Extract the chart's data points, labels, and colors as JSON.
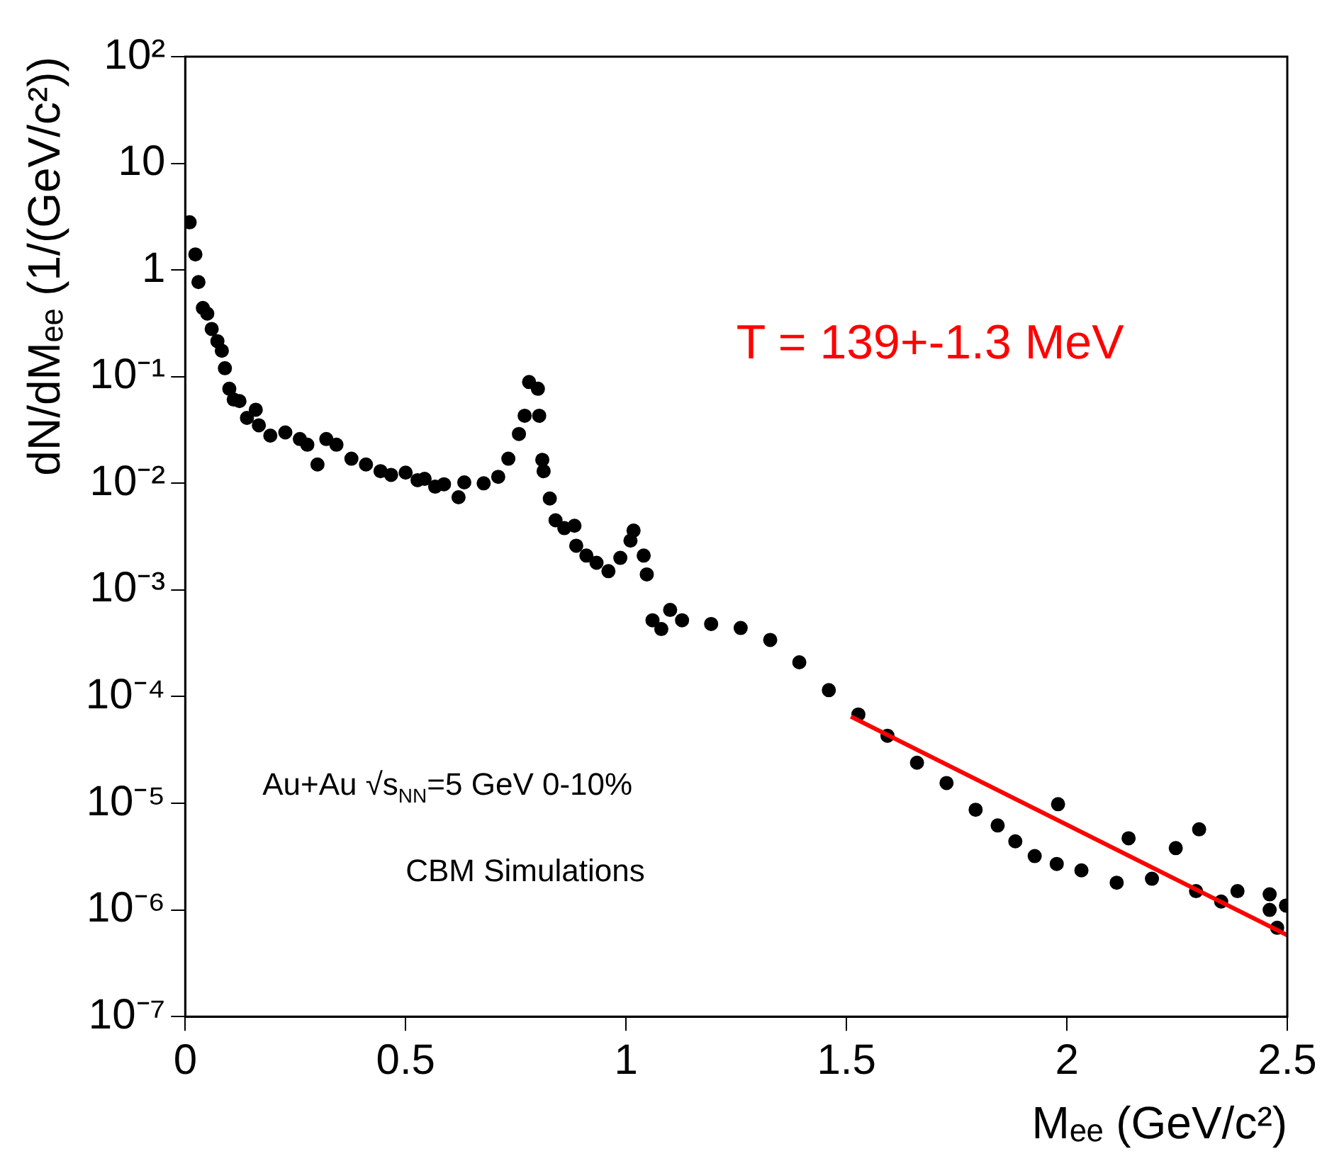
{
  "chart_data": {
    "type": "scatter",
    "xlabel": "Mₑₑ (GeV/c²)",
    "ylabel": "dN/dMₑₑ (1/(GeV/c²))",
    "log": "y",
    "xlim": [
      0,
      2.5
    ],
    "xticks": [
      0,
      0.5,
      1,
      1.5,
      2,
      2.5
    ],
    "ylim": [
      1e-07,
      100
    ],
    "yticks": [
      {
        "value": 1e-07,
        "label": "10⁻⁷"
      },
      {
        "value": 1e-06,
        "label": "10⁻⁶"
      },
      {
        "value": 1e-05,
        "label": "10⁻⁵"
      },
      {
        "value": 0.0001,
        "label": "10⁻⁴"
      },
      {
        "value": 0.001,
        "label": "10⁻³"
      },
      {
        "value": 0.01,
        "label": "10⁻²"
      },
      {
        "value": 0.1,
        "label": "10⁻¹"
      },
      1,
      10,
      {
        "value": 100,
        "label": "10²"
      }
    ],
    "grid": false,
    "marker": "circle",
    "annotations": [
      "Au+Au √s$_{NN}$=5 GeV 0-10%",
      "CBM Simulations"
    ],
    "series": [
      {
        "type": "scatter",
        "color": "#000000",
        "x": [
          0.01,
          0.023,
          0.03,
          0.04,
          0.05,
          0.06,
          0.073,
          0.083,
          0.09,
          0.1,
          0.11,
          0.123,
          0.14,
          0.16,
          0.167,
          0.193,
          0.227,
          0.26,
          0.277,
          0.3,
          0.32,
          0.343,
          0.377,
          0.41,
          0.443,
          0.467,
          0.5,
          0.527,
          0.543,
          0.567,
          0.587,
          0.62,
          0.633,
          0.677,
          0.71,
          0.733,
          0.757,
          0.77,
          0.78,
          0.8,
          0.803,
          0.81,
          0.813,
          0.827,
          0.84,
          0.86,
          0.883,
          0.887,
          0.91,
          0.933,
          0.96,
          0.987,
          1.01,
          1.017,
          1.04,
          1.047,
          1.06,
          1.08,
          1.1,
          1.127,
          1.193,
          1.26,
          1.327,
          1.393,
          1.46,
          1.527,
          1.593,
          1.66,
          1.727,
          1.793,
          1.843,
          1.883,
          1.927,
          1.977,
          1.98,
          2.033,
          2.14,
          2.113,
          2.193,
          2.247,
          2.3,
          2.293,
          2.35,
          2.387,
          2.46,
          2.46,
          2.477,
          2.497
        ],
        "values": [
          2.8,
          1.4,
          0.77,
          0.44,
          0.39,
          0.28,
          0.215,
          0.175,
          0.12,
          0.077,
          0.061,
          0.059,
          0.041,
          0.049,
          0.035,
          0.028,
          0.03,
          0.026,
          0.023,
          0.015,
          0.026,
          0.023,
          0.017,
          0.015,
          0.013,
          0.012,
          0.0126,
          0.0107,
          0.011,
          0.0093,
          0.0098,
          0.0074,
          0.0102,
          0.01,
          0.0115,
          0.017,
          0.029,
          0.043,
          0.089,
          0.077,
          0.043,
          0.0166,
          0.013,
          0.0072,
          0.0045,
          0.0038,
          0.004,
          0.0026,
          0.0021,
          0.0018,
          0.0015,
          0.002,
          0.0029,
          0.0036,
          0.0021,
          0.0014,
          0.00052,
          0.00043,
          0.00065,
          0.00052,
          0.00048,
          0.00044,
          0.00034,
          0.00021,
          0.000115,
          6.8e-05,
          4.3e-05,
          2.4e-05,
          1.55e-05,
          8.7e-06,
          6.2e-06,
          4.4e-06,
          3.2e-06,
          2.7e-06,
          9.8e-06,
          2.35e-06,
          4.7e-06,
          1.8e-06,
          1.96e-06,
          3.8e-06,
          5.7e-06,
          1.5e-06,
          1.2e-06,
          1.5e-06,
          1e-06,
          1.4e-06,
          6.8e-07,
          1.1e-06
        ]
      },
      {
        "type": "line",
        "name": "T = 139+-1.3 MeV",
        "color": "#ff0000",
        "x": [
          1.51,
          2.5
        ],
        "values": [
          6.5e-05,
          5.8e-07
        ],
        "marker": "none",
        "line_style": "solid"
      }
    ]
  }
}
